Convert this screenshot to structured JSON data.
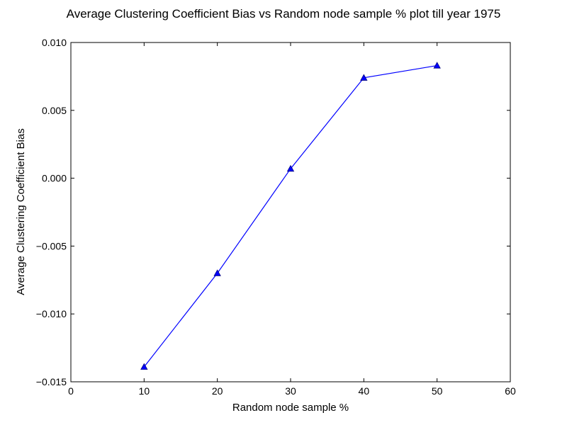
{
  "chart_data": {
    "type": "line",
    "title": "Average Clustering Coefficient Bias vs Random node sample % plot till year 1975",
    "xlabel": "Random node sample %",
    "ylabel": "Average Clustering Coefficient Bias",
    "xlim": [
      0,
      60
    ],
    "ylim": [
      -0.015,
      0.01
    ],
    "xticks": [
      0,
      10,
      20,
      30,
      40,
      50,
      60
    ],
    "xtick_labels": [
      "0",
      "10",
      "20",
      "30",
      "40",
      "50",
      "60"
    ],
    "yticks": [
      -0.015,
      -0.01,
      -0.005,
      0.0,
      0.005,
      0.01
    ],
    "ytick_labels": [
      "−0.015",
      "−0.010",
      "−0.005",
      "0.000",
      "0.005",
      "0.010"
    ],
    "grid": false,
    "series": [
      {
        "marker": "triangle-up",
        "color": "#0000ff",
        "x": [
          10,
          20,
          30,
          40,
          50
        ],
        "y": [
          -0.0139,
          -0.007,
          0.0007,
          0.0074,
          0.0083
        ]
      }
    ]
  }
}
